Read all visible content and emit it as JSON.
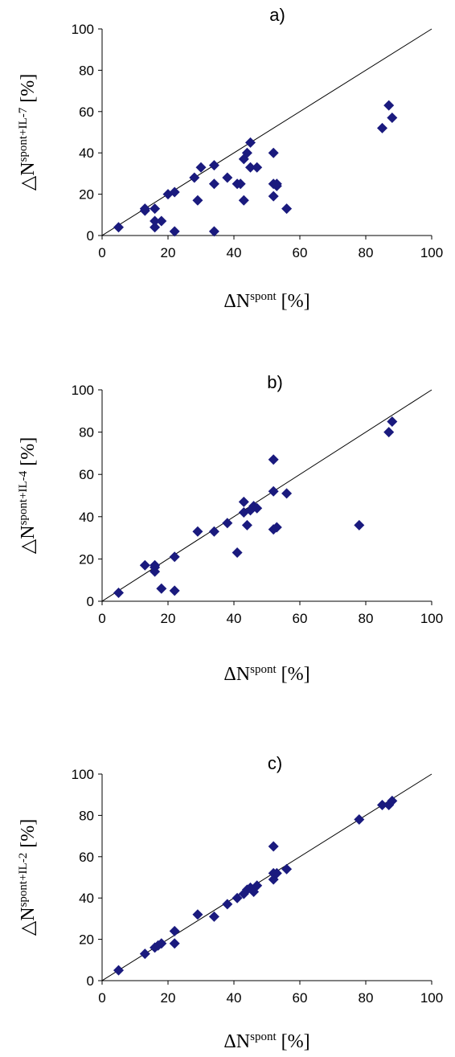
{
  "chart_data": [
    {
      "type": "scatter",
      "panel_label": "a)",
      "xlabel": {
        "symbol": "ΔN",
        "sup": "spont",
        "unit": " [%]"
      },
      "ylabel": {
        "symbol": "△N",
        "sup": "spont+IL-7",
        "unit": " [%]"
      },
      "xlim": [
        0,
        100
      ],
      "ylim": [
        0,
        100
      ],
      "xticks": [
        "0",
        "20",
        "40",
        "60",
        "80",
        "100"
      ],
      "yticks": [
        "0",
        "20",
        "40",
        "60",
        "80",
        "100"
      ],
      "reference_line": "y = x",
      "marker": "diamond",
      "marker_color": "#1a1a7e",
      "points": [
        [
          5,
          4
        ],
        [
          13,
          12
        ],
        [
          13,
          13
        ],
        [
          16,
          4
        ],
        [
          16,
          7
        ],
        [
          16,
          13
        ],
        [
          18,
          7
        ],
        [
          20,
          20
        ],
        [
          22,
          2
        ],
        [
          22,
          21
        ],
        [
          28,
          28
        ],
        [
          29,
          17
        ],
        [
          30,
          33
        ],
        [
          34,
          2
        ],
        [
          34,
          25
        ],
        [
          34,
          34
        ],
        [
          38,
          28
        ],
        [
          41,
          25
        ],
        [
          42,
          25
        ],
        [
          43,
          17
        ],
        [
          43,
          37
        ],
        [
          44,
          40
        ],
        [
          45,
          33
        ],
        [
          45,
          45
        ],
        [
          47,
          33
        ],
        [
          52,
          19
        ],
        [
          52,
          25
        ],
        [
          52,
          40
        ],
        [
          53,
          24
        ],
        [
          53,
          25
        ],
        [
          56,
          13
        ],
        [
          85,
          52
        ],
        [
          87,
          63
        ],
        [
          88,
          57
        ]
      ]
    },
    {
      "type": "scatter",
      "panel_label": "b)",
      "xlabel": {
        "symbol": "ΔN",
        "sup": "spont",
        "unit": " [%]"
      },
      "ylabel": {
        "symbol": "△N",
        "sup": "spont+IL-4",
        "unit": " [%]"
      },
      "xlim": [
        0,
        100
      ],
      "ylim": [
        0,
        100
      ],
      "xticks": [
        "0",
        "20",
        "40",
        "60",
        "80",
        "100"
      ],
      "yticks": [
        "0",
        "20",
        "40",
        "60",
        "80",
        "100"
      ],
      "reference_line": "y = x",
      "marker": "diamond",
      "marker_color": "#1a1a7e",
      "points": [
        [
          5,
          4
        ],
        [
          13,
          17
        ],
        [
          16,
          14
        ],
        [
          16,
          16
        ],
        [
          16,
          17
        ],
        [
          18,
          6
        ],
        [
          22,
          5
        ],
        [
          22,
          21
        ],
        [
          29,
          33
        ],
        [
          34,
          33
        ],
        [
          38,
          37
        ],
        [
          41,
          23
        ],
        [
          43,
          42
        ],
        [
          43,
          47
        ],
        [
          44,
          36
        ],
        [
          45,
          43
        ],
        [
          46,
          45
        ],
        [
          47,
          44
        ],
        [
          52,
          34
        ],
        [
          52,
          52
        ],
        [
          52,
          67
        ],
        [
          53,
          35
        ],
        [
          56,
          51
        ],
        [
          78,
          36
        ],
        [
          87,
          80
        ],
        [
          88,
          85
        ]
      ]
    },
    {
      "type": "scatter",
      "panel_label": "c)",
      "xlabel": {
        "symbol": "ΔN",
        "sup": "spont",
        "unit": " [%]"
      },
      "ylabel": {
        "symbol": "△N",
        "sup": "spont+IL-2",
        "unit": " [%]"
      },
      "xlim": [
        0,
        100
      ],
      "ylim": [
        0,
        100
      ],
      "xticks": [
        "0",
        "20",
        "40",
        "60",
        "80",
        "100"
      ],
      "yticks": [
        "0",
        "20",
        "40",
        "60",
        "80",
        "100"
      ],
      "reference_line": "y = x",
      "marker": "diamond",
      "marker_color": "#1a1a7e",
      "points": [
        [
          5,
          5
        ],
        [
          13,
          13
        ],
        [
          16,
          16
        ],
        [
          17,
          17
        ],
        [
          18,
          18
        ],
        [
          22,
          18
        ],
        [
          22,
          24
        ],
        [
          29,
          32
        ],
        [
          34,
          31
        ],
        [
          38,
          37
        ],
        [
          41,
          40
        ],
        [
          43,
          42
        ],
        [
          44,
          44
        ],
        [
          45,
          45
        ],
        [
          46,
          43
        ],
        [
          47,
          46
        ],
        [
          52,
          49
        ],
        [
          52,
          52
        ],
        [
          52,
          65
        ],
        [
          53,
          52
        ],
        [
          56,
          54
        ],
        [
          78,
          78
        ],
        [
          85,
          85
        ],
        [
          87,
          85
        ],
        [
          88,
          87
        ]
      ]
    }
  ]
}
